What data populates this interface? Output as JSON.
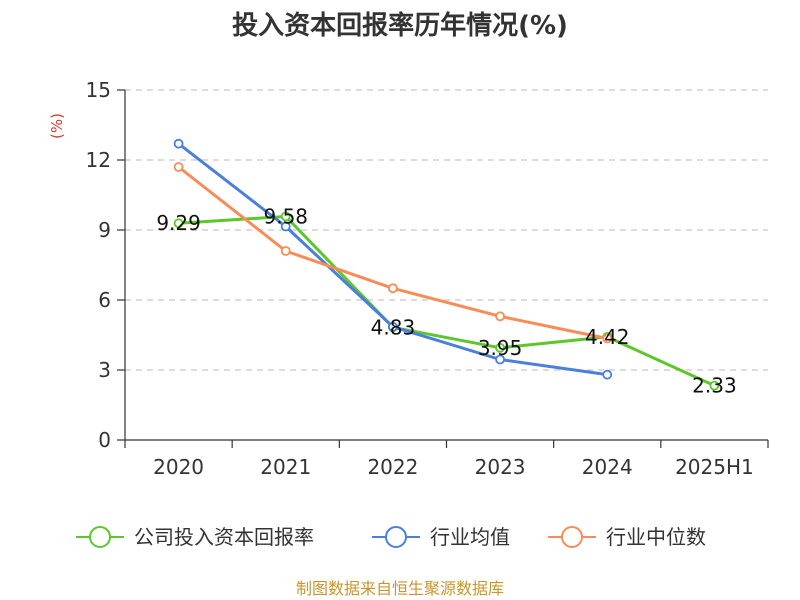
{
  "chart_data": {
    "type": "line",
    "title": "投入资本回报率历年情况(%)",
    "ylabel": "(%)",
    "xlabel": "",
    "categories": [
      "2020",
      "2021",
      "2022",
      "2023",
      "2024",
      "2025H1"
    ],
    "ylim": [
      0,
      15
    ],
    "yticks": [
      0,
      3,
      6,
      9,
      12,
      15
    ],
    "grid": true,
    "legend_position": "bottom",
    "series": [
      {
        "name": "公司投入资本回报率",
        "color": "#5cc72a",
        "values": [
          9.29,
          9.58,
          4.83,
          3.95,
          4.42,
          2.33
        ],
        "labels": [
          "9.29",
          "9.58",
          "4.83",
          "3.95",
          "4.42",
          "2.33"
        ]
      },
      {
        "name": "行业均值",
        "color": "#4a7fdc",
        "values": [
          12.7,
          9.15,
          4.85,
          3.45,
          2.8,
          null
        ]
      },
      {
        "name": "行业中位数",
        "color": "#f98c55",
        "values": [
          11.7,
          8.1,
          6.5,
          5.3,
          4.35,
          null
        ]
      }
    ],
    "source": "制图数据来自恒生聚源数据库"
  }
}
